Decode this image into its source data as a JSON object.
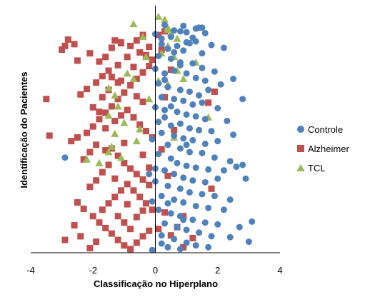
{
  "chart_data": {
    "type": "scatter",
    "title": "",
    "xlabel": "Classificação no Hiperplano",
    "ylabel": "Identificação do Pacientes",
    "xlim": [
      -4,
      4
    ],
    "ylim": [
      0,
      270
    ],
    "xticks": [
      {
        "value": -4,
        "label": "-4"
      },
      {
        "value": -2,
        "label": "-2"
      },
      {
        "value": 0,
        "label": "0"
      },
      {
        "value": 2,
        "label": "2"
      },
      {
        "value": 4,
        "label": "4"
      }
    ],
    "grid": false,
    "legend": "right",
    "series": [
      {
        "name": "Controle",
        "marker": "circle",
        "color": "#4F81BD",
        "points": [
          [
            0.0,
            239
          ],
          [
            0.2,
            234
          ],
          [
            0.3,
            249
          ],
          [
            0.5,
            236
          ],
          [
            0.6,
            243
          ],
          [
            0.8,
            242
          ],
          [
            0.9,
            248
          ],
          [
            1.0,
            241
          ],
          [
            1.2,
            235
          ],
          [
            1.3,
            245
          ],
          [
            1.4,
            246
          ],
          [
            1.5,
            246
          ],
          [
            1.6,
            240
          ],
          [
            1.0,
            230
          ],
          [
            0.7,
            226
          ],
          [
            0.4,
            223
          ],
          [
            0.2,
            228
          ],
          [
            0.6,
            219
          ],
          [
            0.9,
            221
          ],
          [
            1.1,
            229
          ],
          [
            1.3,
            231
          ],
          [
            1.5,
            218
          ],
          [
            2.2,
            224
          ],
          [
            1.8,
            227
          ],
          [
            0.1,
            215
          ],
          [
            0.5,
            212
          ],
          [
            0.8,
            205
          ],
          [
            1.2,
            207
          ],
          [
            1.5,
            202
          ],
          [
            1.9,
            198
          ],
          [
            2.5,
            190
          ],
          [
            0.3,
            196
          ],
          [
            0.6,
            199
          ],
          [
            1.0,
            196
          ],
          [
            1.3,
            191
          ],
          [
            1.6,
            188
          ],
          [
            2.1,
            184
          ],
          [
            2.8,
            168
          ],
          [
            0.1,
            185
          ],
          [
            0.4,
            181
          ],
          [
            0.8,
            178
          ],
          [
            1.1,
            176
          ],
          [
            1.4,
            172
          ],
          [
            1.7,
            178
          ],
          [
            0.2,
            170
          ],
          [
            0.6,
            168
          ],
          [
            0.9,
            166
          ],
          [
            1.2,
            162
          ],
          [
            1.5,
            164
          ],
          [
            2.0,
            158
          ],
          [
            0.0,
            159
          ],
          [
            0.3,
            156
          ],
          [
            0.7,
            154
          ],
          [
            1.0,
            151
          ],
          [
            1.3,
            149
          ],
          [
            1.6,
            146
          ],
          [
            2.3,
            144
          ],
          [
            0.1,
            143
          ],
          [
            0.5,
            139
          ],
          [
            0.8,
            141
          ],
          [
            1.1,
            136
          ],
          [
            1.4,
            134
          ],
          [
            1.8,
            133
          ],
          [
            0.2,
            131
          ],
          [
            0.6,
            128
          ],
          [
            0.9,
            125
          ],
          [
            1.2,
            123
          ],
          [
            1.6,
            119
          ],
          [
            2.0,
            122
          ],
          [
            2.5,
            129
          ],
          [
            0.4,
            118
          ],
          [
            0.8,
            114
          ],
          [
            1.1,
            110
          ],
          [
            1.5,
            109
          ],
          [
            1.9,
            104
          ],
          [
            2.4,
            100
          ],
          [
            2.8,
            96
          ],
          [
            -2.9,
            104
          ],
          [
            0.1,
            108
          ],
          [
            0.5,
            103
          ],
          [
            0.7,
            98
          ],
          [
            1.0,
            95
          ],
          [
            1.3,
            93
          ],
          [
            1.7,
            91
          ],
          [
            2.2,
            90
          ],
          [
            2.6,
            94
          ],
          [
            0.3,
            90
          ],
          [
            0.6,
            86
          ],
          [
            0.9,
            82
          ],
          [
            1.2,
            79
          ],
          [
            1.6,
            77
          ],
          [
            2.0,
            81
          ],
          [
            2.9,
            81
          ],
          [
            0.0,
            78
          ],
          [
            0.4,
            73
          ],
          [
            0.8,
            70
          ],
          [
            1.1,
            66
          ],
          [
            1.5,
            64
          ],
          [
            1.9,
            62
          ],
          [
            2.4,
            58
          ],
          [
            0.2,
            62
          ],
          [
            0.6,
            58
          ],
          [
            0.9,
            55
          ],
          [
            1.3,
            51
          ],
          [
            1.7,
            49
          ],
          [
            2.2,
            47
          ],
          [
            0.1,
            47
          ],
          [
            0.5,
            43
          ],
          [
            0.8,
            40
          ],
          [
            1.2,
            36
          ],
          [
            1.6,
            33
          ],
          [
            2.0,
            31
          ],
          [
            3.1,
            34
          ],
          [
            2.7,
            28
          ],
          [
            0.3,
            32
          ],
          [
            0.7,
            28
          ],
          [
            1.0,
            25
          ],
          [
            1.4,
            22
          ],
          [
            1.8,
            18
          ],
          [
            2.4,
            17
          ],
          [
            0.2,
            19
          ],
          [
            0.6,
            15
          ],
          [
            1.0,
            11
          ],
          [
            1.3,
            8
          ],
          [
            1.7,
            6
          ],
          [
            3.0,
            12
          ],
          [
            0.4,
            6
          ],
          [
            0.8,
            4
          ],
          [
            -0.1,
            3
          ],
          [
            0.2,
            10
          ],
          [
            -0.2,
            86
          ],
          [
            -0.1,
            124
          ],
          [
            0.3,
            148
          ],
          [
            0.0,
            201
          ],
          [
            0.3,
            189
          ],
          [
            0.5,
            160
          ],
          [
            0.4,
            54
          ],
          [
            0.9,
            36
          ],
          [
            -0.1,
            56
          ],
          [
            0.0,
            92
          ],
          [
            1.0,
            118
          ],
          [
            0.8,
            208
          ]
        ]
      },
      {
        "name": "Alzheimer",
        "marker": "square",
        "color": "#C0504D",
        "points": [
          [
            -2.9,
            226
          ],
          [
            -2.8,
            233
          ],
          [
            -2.6,
            228
          ],
          [
            -3.0,
            222
          ],
          [
            -2.5,
            210
          ],
          [
            -2.1,
            218
          ],
          [
            -1.8,
            209
          ],
          [
            -1.6,
            214
          ],
          [
            -1.4,
            224
          ],
          [
            -1.3,
            232
          ],
          [
            -1.1,
            229
          ],
          [
            -0.8,
            226
          ],
          [
            -0.6,
            232
          ],
          [
            -0.4,
            238
          ],
          [
            -0.2,
            225
          ],
          [
            -0.5,
            219
          ],
          [
            -0.9,
            214
          ],
          [
            -1.2,
            205
          ],
          [
            -1.5,
            199
          ],
          [
            -1.7,
            193
          ],
          [
            -1.9,
            186
          ],
          [
            -2.2,
            179
          ],
          [
            -2.4,
            173
          ],
          [
            -3.5,
            168
          ],
          [
            -3.4,
            128
          ],
          [
            -2.7,
            122
          ],
          [
            -2.5,
            126
          ],
          [
            -2.2,
            131
          ],
          [
            -2.0,
            138
          ],
          [
            -1.8,
            146
          ],
          [
            -1.6,
            153
          ],
          [
            -1.4,
            160
          ],
          [
            -1.2,
            168
          ],
          [
            -1.0,
            175
          ],
          [
            -0.8,
            183
          ],
          [
            -0.6,
            190
          ],
          [
            -0.4,
            197
          ],
          [
            -0.2,
            204
          ],
          [
            -0.1,
            211
          ],
          [
            -0.3,
            216
          ],
          [
            -0.7,
            203
          ],
          [
            -1.1,
            188
          ],
          [
            -1.5,
            178
          ],
          [
            -1.7,
            170
          ],
          [
            -0.9,
            156
          ],
          [
            -0.7,
            148
          ],
          [
            -0.5,
            140
          ],
          [
            -0.3,
            133
          ],
          [
            -0.1,
            126
          ],
          [
            -1.3,
            144
          ],
          [
            -1.6,
            136
          ],
          [
            -1.9,
            118
          ],
          [
            -2.1,
            110
          ],
          [
            -2.3,
            102
          ],
          [
            -1.4,
            114
          ],
          [
            -1.2,
            106
          ],
          [
            -1.0,
            98
          ],
          [
            -0.8,
            92
          ],
          [
            -0.6,
            86
          ],
          [
            -0.4,
            80
          ],
          [
            -0.2,
            74
          ],
          [
            -1.5,
            96
          ],
          [
            -1.7,
            88
          ],
          [
            -1.9,
            79
          ],
          [
            -2.1,
            72
          ],
          [
            -2.5,
            55
          ],
          [
            -2.3,
            48
          ],
          [
            -2.0,
            40
          ],
          [
            -1.8,
            33
          ],
          [
            -1.6,
            27
          ],
          [
            -1.4,
            21
          ],
          [
            -1.2,
            14
          ],
          [
            -1.0,
            8
          ],
          [
            -0.8,
            4
          ],
          [
            -0.6,
            11
          ],
          [
            -0.4,
            18
          ],
          [
            -0.2,
            24
          ],
          [
            -2.6,
            30
          ],
          [
            -2.9,
            14
          ],
          [
            -2.4,
            18
          ],
          [
            -2.1,
            5
          ],
          [
            -1.9,
            12
          ],
          [
            -1.7,
            47
          ],
          [
            -1.5,
            54
          ],
          [
            -1.3,
            61
          ],
          [
            -1.1,
            68
          ],
          [
            -0.9,
            75
          ],
          [
            -0.7,
            68
          ],
          [
            -0.5,
            61
          ],
          [
            -0.3,
            54
          ],
          [
            -0.1,
            47
          ],
          [
            -1.2,
            40
          ],
          [
            -1.0,
            33
          ],
          [
            -0.8,
            26
          ],
          [
            -0.6,
            39
          ],
          [
            -0.4,
            46
          ],
          [
            0.1,
            238
          ],
          [
            0.3,
            242
          ],
          [
            0.2,
            222
          ],
          [
            0.5,
            200
          ],
          [
            0.3,
            170
          ],
          [
            0.6,
            134
          ],
          [
            0.2,
            113
          ],
          [
            0.4,
            84
          ],
          [
            0.3,
            44
          ],
          [
            0.1,
            26
          ],
          [
            0.5,
            19
          ],
          [
            0.7,
            28
          ],
          [
            0.9,
            40
          ],
          [
            1.2,
            16
          ],
          [
            1.8,
            70
          ],
          [
            1.7,
            164
          ],
          [
            1.9,
            176
          ],
          [
            0.9,
            6
          ],
          [
            -0.9,
            53
          ],
          [
            -1.3,
            81
          ],
          [
            -1.0,
            120
          ],
          [
            -1.6,
            112
          ],
          [
            -1.1,
            150
          ],
          [
            -0.4,
            165
          ],
          [
            -0.6,
            171
          ],
          [
            -1.2,
            186
          ],
          [
            -1.4,
            192
          ],
          [
            -1.8,
            154
          ],
          [
            -2.0,
            159
          ],
          [
            -0.2,
            93
          ],
          [
            -0.4,
            107
          ],
          [
            -1.1,
            230
          ]
        ]
      },
      {
        "name": "TCL",
        "marker": "triangle",
        "color": "#9BBB59",
        "points": [
          [
            -0.7,
            250
          ],
          [
            -0.4,
            236
          ],
          [
            0.1,
            258
          ],
          [
            0.3,
            255
          ],
          [
            0.4,
            246
          ],
          [
            0.5,
            240
          ],
          [
            0.7,
            234
          ],
          [
            0.4,
            226
          ],
          [
            0.2,
            218
          ],
          [
            1.3,
            208
          ],
          [
            0.7,
            199
          ],
          [
            0.9,
            190
          ],
          [
            0.4,
            184
          ],
          [
            -0.9,
            196
          ],
          [
            -0.7,
            190
          ],
          [
            -1.5,
            180
          ],
          [
            -1.3,
            172
          ],
          [
            -1.2,
            160
          ],
          [
            -1.5,
            150
          ],
          [
            -1.0,
            142
          ],
          [
            -1.3,
            130
          ],
          [
            -0.5,
            135
          ],
          [
            -1.4,
            116
          ],
          [
            -1.1,
            104
          ],
          [
            -1.8,
            98
          ],
          [
            -2.2,
            102
          ],
          [
            -1.5,
            110
          ],
          [
            0.6,
            126
          ],
          [
            1.7,
            148
          ],
          [
            0.1,
            188
          ],
          [
            0.6,
            214
          ],
          [
            -0.3,
            214
          ],
          [
            -0.2,
            168
          ],
          [
            -0.6,
            122
          ],
          [
            0.4,
            244
          ]
        ]
      }
    ]
  }
}
